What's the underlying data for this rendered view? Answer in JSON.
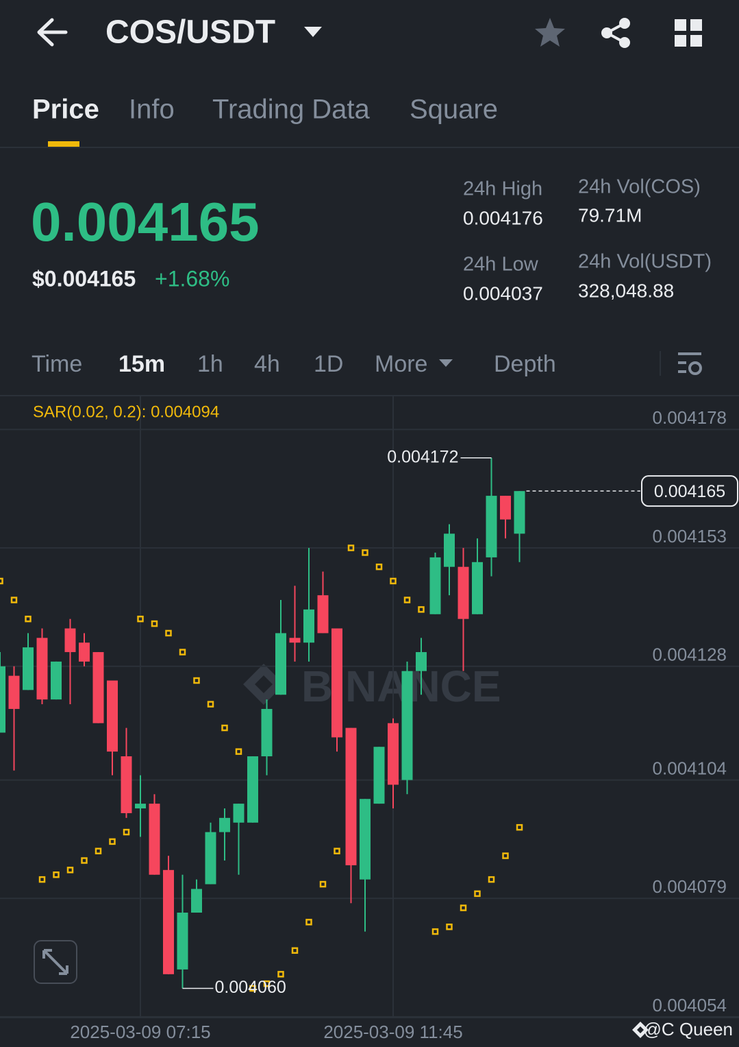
{
  "header": {
    "title": "COS/USDT"
  },
  "tabs": [
    "Price",
    "Info",
    "Trading Data",
    "Square"
  ],
  "ticker": {
    "price": "0.004165",
    "price_usd": "$0.004165",
    "change": "+1.68%",
    "stats": [
      {
        "label": "24h High",
        "value": "0.004176"
      },
      {
        "label": "24h Vol(COS)",
        "value": "79.71M"
      },
      {
        "label": "24h Low",
        "value": "0.004037"
      },
      {
        "label": "24h Vol(USDT)",
        "value": "328,048.88"
      }
    ]
  },
  "intervals": [
    "Time",
    "15m",
    "1h",
    "4h",
    "1D",
    "More",
    "Depth"
  ],
  "watermark": "BINANCE",
  "credit": "@C Queen",
  "chart_data": {
    "type": "candlestick",
    "x": [
      null,
      null,
      null,
      null,
      null,
      null,
      null,
      null,
      null,
      null,
      "2025-03-09 07:15",
      null,
      null,
      null,
      null,
      null,
      null,
      null,
      null,
      null,
      null,
      null,
      null,
      null,
      null,
      null,
      null,
      null,
      "2025-03-09 11:45",
      null,
      null,
      null,
      null,
      null,
      null,
      null,
      null,
      null
    ],
    "open": [
      0.004114,
      0.004126,
      0.004123,
      0.004134,
      0.004121,
      0.004136,
      0.004133,
      0.004131,
      0.004125,
      0.004109,
      0.004098,
      0.004099,
      0.004085,
      0.004064,
      0.004076,
      0.004082,
      0.004093,
      0.004095,
      0.004095,
      0.004109,
      0.004122,
      0.004134,
      0.004133,
      0.004143,
      0.004136,
      0.004115,
      0.004083,
      0.004099,
      0.004116,
      0.004104,
      0.004127,
      0.004139,
      0.004149,
      0.004149,
      0.004139,
      0.004151,
      0.004164,
      0.004156
    ],
    "high": [
      0.004131,
      0.004128,
      0.004135,
      0.004136,
      0.004129,
      0.004138,
      0.004135,
      0.004131,
      0.004125,
      0.004115,
      0.004105,
      0.004101,
      0.004088,
      0.004084,
      0.004083,
      0.004095,
      0.004098,
      0.004099,
      0.004109,
      0.004121,
      0.004142,
      0.004145,
      0.004153,
      0.004148,
      0.004136,
      0.004115,
      0.0041,
      0.004111,
      0.004117,
      0.004129,
      0.004134,
      0.004152,
      0.004158,
      0.004153,
      0.004155,
      0.004172,
      0.004164,
      0.004165
    ],
    "low": [
      0.004114,
      0.004106,
      0.004123,
      0.00412,
      0.004121,
      0.00412,
      0.004128,
      0.004116,
      0.004105,
      0.004096,
      0.004092,
      0.004084,
      0.004063,
      0.00406,
      0.004076,
      0.004082,
      0.004087,
      0.004084,
      0.004095,
      0.004105,
      0.004122,
      0.004129,
      0.004129,
      0.004135,
      0.00411,
      0.004078,
      0.004072,
      0.004099,
      0.004098,
      0.004101,
      0.004122,
      0.004139,
      0.004143,
      0.004127,
      0.004139,
      0.004147,
      0.004155,
      0.00415
    ],
    "close": [
      0.004128,
      0.004119,
      0.004132,
      0.004121,
      0.004129,
      0.004131,
      0.004129,
      0.004116,
      0.00411,
      0.004097,
      0.004099,
      0.004084,
      0.004063,
      0.004076,
      0.004081,
      0.004093,
      0.004096,
      0.004099,
      0.004109,
      0.004119,
      0.004135,
      0.004133,
      0.00414,
      0.004135,
      0.004113,
      0.004086,
      0.0041,
      0.004111,
      0.004103,
      0.004127,
      0.004131,
      0.004151,
      0.004156,
      0.004138,
      0.00415,
      0.004164,
      0.004159,
      0.004165
    ],
    "up_color": "#2ebd85",
    "down_color": "#f6465d",
    "indicator": {
      "label": "SAR(0.02, 0.2): 0.004094",
      "color": "#f0b90b",
      "values": [
        0.004146,
        0.004142,
        0.004138,
        0.004083,
        0.004084,
        0.004085,
        0.004087,
        0.004089,
        0.004091,
        0.004093,
        0.004138,
        0.004137,
        0.004135,
        0.004131,
        0.004125,
        0.00412,
        0.004115,
        0.00411,
        0.00406,
        0.004061,
        0.004063,
        0.004068,
        0.004074,
        0.004082,
        0.004089,
        0.004153,
        0.004152,
        0.004149,
        0.004146,
        0.004142,
        0.00414,
        0.004072,
        0.004073,
        0.004077,
        0.00408,
        0.004083,
        0.004088,
        0.004094
      ]
    },
    "last_price": 0.004165,
    "max_label": "0.004172",
    "min_label": "0.004060",
    "ylim": [
      0.004054,
      0.004185
    ],
    "yticks": [
      0.004178,
      0.004153,
      0.004128,
      0.004104,
      0.004079,
      0.004054
    ],
    "grid": true
  }
}
